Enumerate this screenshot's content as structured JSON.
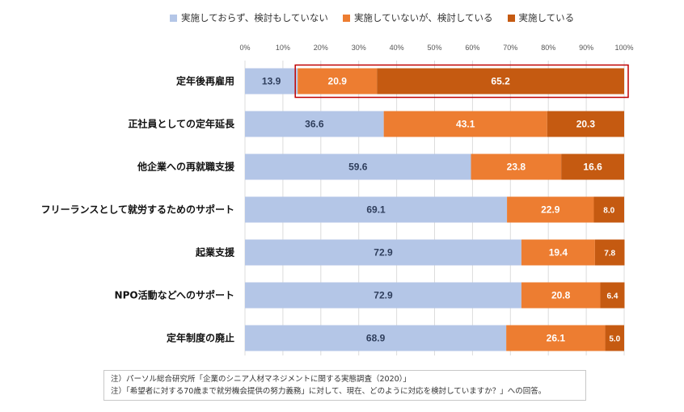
{
  "legend": [
    {
      "label": "実施しておらず、検討もしていない",
      "color": "#b4c6e7"
    },
    {
      "label": "実施していないが、検討している",
      "color": "#ed7d31"
    },
    {
      "label": "実施している",
      "color": "#c55a11"
    }
  ],
  "chart_data": {
    "type": "bar",
    "orientation": "horizontal",
    "stacked": true,
    "categories": [
      "定年後再雇用",
      "正社員としての定年延長",
      "他企業への再就職支援",
      "フリーランスとして就労するためのサポート",
      "起業支援",
      "NPO活動などへのサポート",
      "定年制度の廃止"
    ],
    "series": [
      {
        "name": "実施しておらず、検討もしていない",
        "color": "#b4c6e7",
        "label_color": "#2f3e5c",
        "values": [
          13.9,
          36.6,
          59.6,
          69.1,
          72.9,
          72.9,
          68.9
        ]
      },
      {
        "name": "実施していないが、検討している",
        "color": "#ed7d31",
        "label_color": "#ffffff",
        "values": [
          20.9,
          43.1,
          23.8,
          22.9,
          19.4,
          20.8,
          26.1
        ]
      },
      {
        "name": "実施している",
        "color": "#c55a11",
        "label_color": "#ffffff",
        "values": [
          65.2,
          20.3,
          16.6,
          8.0,
          7.8,
          6.4,
          5.0
        ]
      }
    ],
    "xlim": [
      0,
      100
    ],
    "xticks": [
      "0%",
      "10%",
      "20%",
      "30%",
      "40%",
      "50%",
      "60%",
      "70%",
      "80%",
      "90%",
      "100%"
    ],
    "highlight_category": "定年後再雇用",
    "highlight_color": "#c00000",
    "grid": true
  },
  "notes": [
    "注）パーソル総合研究所「企業のシニア人材マネジメントに関する実態調査（2020）」",
    "注）「希望者に対する70歳まで就労機会提供の努力義務」に対して、現在、どのように対応を検討していますか？」への回答。"
  ]
}
